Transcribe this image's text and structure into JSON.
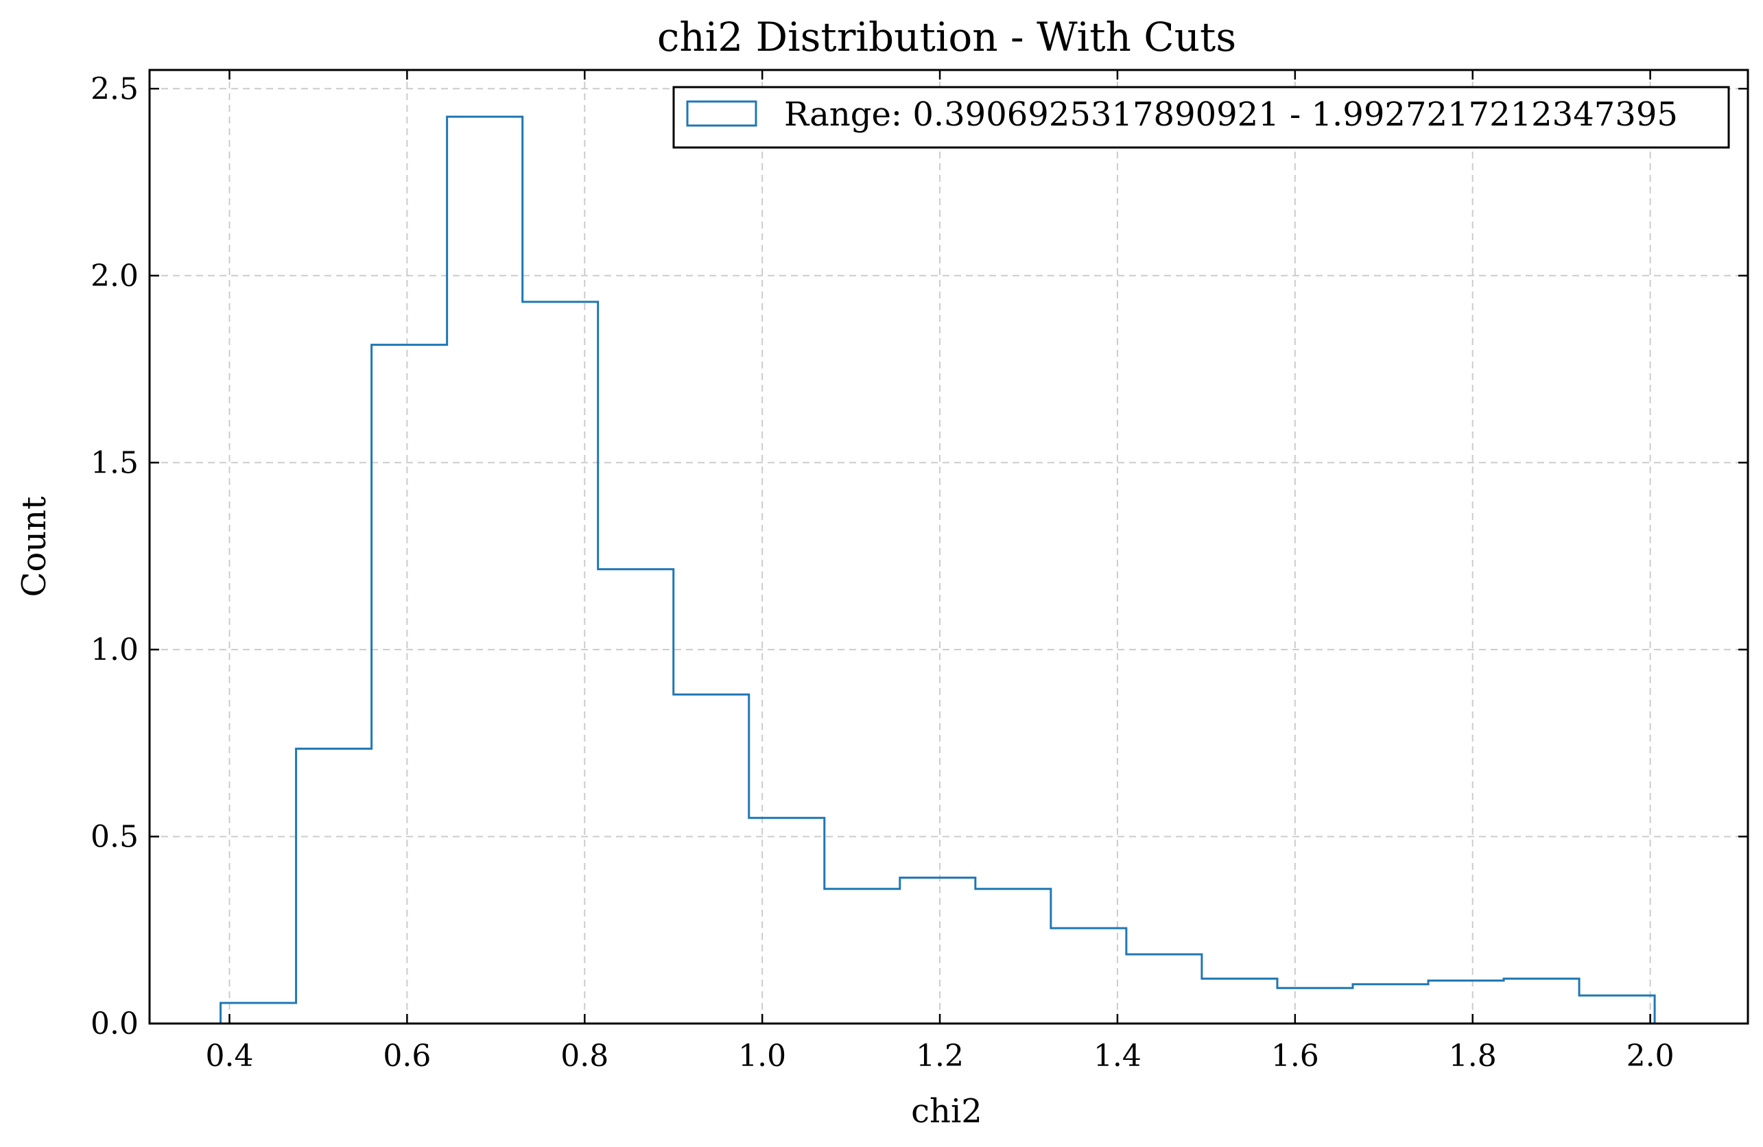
{
  "chart_data": {
    "type": "bar",
    "histtype": "step",
    "title": "chi2 Distribution - With Cuts",
    "xlabel": "chi2",
    "ylabel": "Count",
    "xlim": [
      0.31,
      2.11
    ],
    "ylim": [
      0.0,
      2.55
    ],
    "xticks": [
      0.4,
      0.6,
      0.8,
      1.0,
      1.2,
      1.4,
      1.6,
      1.8,
      2.0
    ],
    "xtick_labels": [
      "0.4",
      "0.6",
      "0.8",
      "1.0",
      "1.2",
      "1.4",
      "1.6",
      "1.8",
      "2.0"
    ],
    "yticks": [
      0.0,
      0.5,
      1.0,
      1.5,
      2.0,
      2.5
    ],
    "ytick_labels": [
      "0.0",
      "0.5",
      "1.0",
      "1.5",
      "2.0",
      "2.5"
    ],
    "grid": true,
    "legend_position": "top-right",
    "series": [
      {
        "name": "Range: 0.3906925317890921 - 1.9927217212347395",
        "color": "#1f77b4",
        "bin_edges": [
          0.39,
          0.475,
          0.56,
          0.645,
          0.73,
          0.815,
          0.9,
          0.985,
          1.07,
          1.155,
          1.24,
          1.325,
          1.41,
          1.495,
          1.58,
          1.665,
          1.75,
          1.835,
          1.92,
          2.005
        ],
        "values": [
          0.055,
          0.735,
          1.815,
          2.425,
          1.93,
          1.215,
          0.88,
          0.55,
          0.36,
          0.39,
          0.36,
          0.255,
          0.185,
          0.12,
          0.095,
          0.105,
          0.115,
          0.12,
          0.075
        ]
      }
    ]
  }
}
